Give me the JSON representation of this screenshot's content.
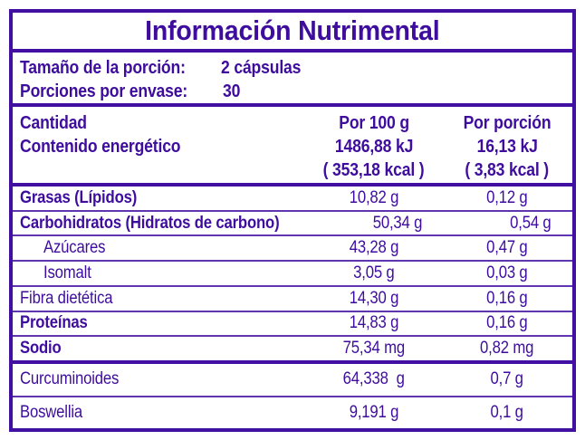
{
  "label": {
    "title": "Información Nutrimental",
    "serving": {
      "size_label": "Tamaño de la porción:",
      "size_value": "2 cápsulas",
      "per_container_label": "Porciones por envase:",
      "per_container_value": "30"
    },
    "header": {
      "amount_label": "Cantidad",
      "energy_label": "Contenido energético",
      "per_100g_title": "Por 100 g",
      "per_100g_kj": "1486,88 kJ",
      "per_100g_kcal": "( 353,18 kcal )",
      "per_portion_title": "Por porción",
      "per_portion_kj": "16,13 kJ",
      "per_portion_kcal": "( 3,83 kcal )"
    },
    "rows": [
      {
        "label": "Grasas (Lípidos)",
        "per_100g": "10,82 g",
        "per_portion": "0,12 g"
      },
      {
        "label": "Carbohidratos (Hidratos de carbono)",
        "per_100g": "50,34 g",
        "per_portion": "0,54 g"
      },
      {
        "label": "Azúcares",
        "per_100g": "43,28 g",
        "per_portion": "0,47 g"
      },
      {
        "label": "Isomalt",
        "per_100g": "3,05 g",
        "per_portion": "0,03 g"
      },
      {
        "label": "Fibra dietética",
        "per_100g": "14,30 g",
        "per_portion": "0,16 g"
      },
      {
        "label": "Proteínas",
        "per_100g": "14,83 g",
        "per_portion": "0,16 g"
      },
      {
        "label": "Sodio",
        "per_100g": "75,34 mg",
        "per_portion": "0,82 mg"
      }
    ],
    "extra_rows": [
      {
        "label": "Curcuminoides",
        "per_100g": "64,338  g",
        "per_portion": "0,7 g"
      },
      {
        "label": "Boswellia",
        "per_100g": "9,191 g",
        "per_portion": "0,1 g"
      }
    ],
    "colors": {
      "accent": "#420FA3",
      "text": "#3E0D9E",
      "thin_rule": "#6036B0",
      "background": "#FFFFFF"
    }
  }
}
